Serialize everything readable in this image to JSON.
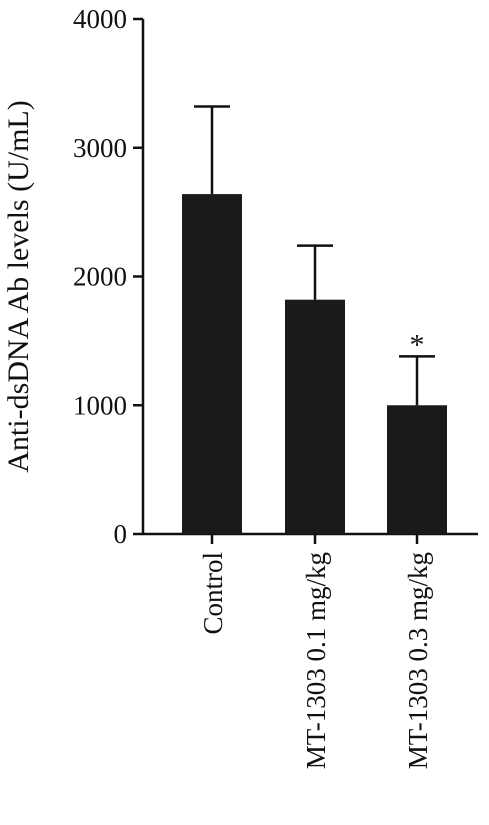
{
  "chart_data": {
    "type": "bar",
    "categories": [
      "Control",
      "MT-1303 0.1 mg/kg",
      "MT-1303 0.3 mg/kg"
    ],
    "values": [
      2640,
      1820,
      1000
    ],
    "error_upper": [
      3320,
      2240,
      1380
    ],
    "annotations": [
      "",
      "",
      "*"
    ],
    "ylabel": "Anti-dsDNA Ab levels (U/mL)",
    "xlabel": "",
    "ylim": [
      0,
      4000
    ],
    "yticks": [
      0,
      1000,
      2000,
      3000,
      4000
    ],
    "ytick_labels": [
      "0",
      "1000",
      "2000",
      "3000",
      "4000"
    ],
    "grid": false,
    "bar_color": "#1a1a1a"
  }
}
